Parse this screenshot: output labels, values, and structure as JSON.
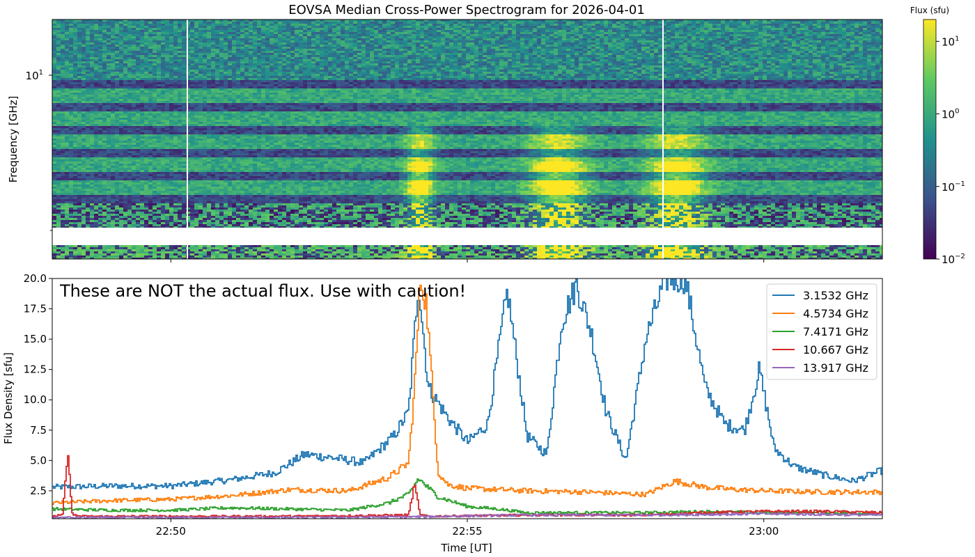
{
  "title": "EOVSA Median Cross-Power Spectrogram for 2026-04-01",
  "colorbar": {
    "label": "Flux (sfu)",
    "ticks": [
      {
        "base": "10",
        "exp": "1",
        "value": 10
      },
      {
        "base": "10",
        "exp": "0",
        "value": 1
      },
      {
        "base": "10",
        "exp": "−1",
        "value": 0.1
      },
      {
        "base": "10",
        "exp": "−2",
        "value": 0.01
      }
    ],
    "range": [
      0.01,
      20
    ],
    "colormap": [
      "#440154",
      "#3b528b",
      "#21918c",
      "#5ec962",
      "#fde725"
    ]
  },
  "spectrogram": {
    "ylabel": "Frequency [GHz]",
    "ytick": {
      "base": "10",
      "exp": "1",
      "value": 10
    },
    "yscale": "log",
    "xlim": [
      "22:48",
      "23:02"
    ]
  },
  "lightcurve": {
    "xlabel": "Time [UT]",
    "ylabel": "Flux Density [sfu]",
    "annotation": "These are NOT the actual flux. Use with caution!",
    "yticks": [
      "2.5",
      "5.0",
      "7.5",
      "10.0",
      "12.5",
      "15.0",
      "17.5",
      "20.0"
    ],
    "xticks": [
      "22:50",
      "22:55",
      "23:00"
    ],
    "legend_position": "top-right"
  },
  "chart_data": [
    {
      "type": "heatmap",
      "title": "EOVSA Median Cross-Power Spectrogram for 2026-04-01",
      "xlabel": "",
      "ylabel": "Frequency [GHz]",
      "yscale": "log",
      "zscale": "log",
      "zlabel": "Flux (sfu)",
      "zlim": [
        0.01,
        20
      ],
      "bright_events": [
        {
          "time": "22:54:10",
          "note": "bright emission 3-6 GHz"
        },
        {
          "time": "22:56:30",
          "note": "bright emission below 4 GHz"
        },
        {
          "time": "22:58:30",
          "note": "bright emission below 4 GHz"
        }
      ]
    },
    {
      "type": "line",
      "xlabel": "Time [UT]",
      "ylabel": "Flux Density [sfu]",
      "xlim": [
        "22:48:00",
        "23:02:00"
      ],
      "ylim": [
        0.2,
        20
      ],
      "grid": false,
      "legend": "top-right",
      "series": [
        {
          "name": "3.1532 GHz",
          "color": "#1f77b4",
          "x": [
            "22:48:00",
            "22:49:00",
            "22:50:00",
            "22:51:00",
            "22:51:45",
            "22:52:15",
            "22:52:45",
            "22:53:15",
            "22:53:45",
            "22:54:00",
            "22:54:10",
            "22:54:20",
            "22:54:40",
            "22:55:00",
            "22:55:20",
            "22:55:40",
            "22:56:00",
            "22:56:20",
            "22:56:35",
            "22:56:50",
            "22:57:05",
            "22:57:20",
            "22:57:40",
            "22:58:00",
            "22:58:20",
            "22:58:40",
            "22:59:00",
            "22:59:20",
            "22:59:40",
            "22:59:55",
            "23:00:10",
            "23:00:30",
            "23:01:00",
            "23:01:30",
            "23:02:00"
          ],
          "y": [
            2.8,
            2.9,
            2.9,
            3.4,
            4.0,
            5.5,
            5.2,
            4.8,
            7.0,
            9.0,
            19.8,
            11.0,
            8.5,
            6.5,
            8.0,
            19.0,
            7.0,
            5.5,
            16.5,
            19.5,
            15.5,
            9.0,
            5.0,
            15.0,
            20.0,
            20.0,
            11.0,
            8.0,
            7.5,
            12.5,
            6.0,
            4.5,
            3.8,
            3.3,
            4.2
          ]
        },
        {
          "name": "4.5734 GHz",
          "color": "#ff7f0e",
          "x": [
            "22:48:00",
            "22:49:00",
            "22:50:00",
            "22:51:00",
            "22:52:00",
            "22:53:00",
            "22:53:40",
            "22:54:00",
            "22:54:06",
            "22:54:12",
            "22:54:18",
            "22:54:30",
            "22:54:40",
            "22:55:00",
            "22:56:00",
            "22:57:00",
            "22:58:00",
            "22:58:30",
            "22:59:00",
            "22:59:30",
            "23:00:00",
            "23:01:00",
            "23:02:00"
          ],
          "y": [
            1.5,
            1.7,
            1.8,
            2.1,
            2.6,
            2.5,
            3.6,
            4.8,
            11.0,
            20.0,
            18.0,
            4.0,
            3.0,
            2.7,
            2.5,
            2.4,
            2.2,
            3.3,
            2.8,
            2.6,
            2.5,
            2.4,
            2.4
          ]
        },
        {
          "name": "7.4171 GHz",
          "color": "#2ca02c",
          "x": [
            "22:48:00",
            "22:49:00",
            "22:50:00",
            "22:51:00",
            "22:52:00",
            "22:53:00",
            "22:53:40",
            "22:54:00",
            "22:54:10",
            "22:54:30",
            "22:55:00",
            "22:55:30",
            "22:56:00",
            "22:57:00",
            "22:58:00",
            "22:59:00",
            "23:00:00",
            "23:01:00",
            "23:02:00"
          ],
          "y": [
            1.0,
            0.9,
            0.9,
            1.1,
            1.0,
            0.9,
            1.5,
            2.2,
            3.5,
            2.0,
            1.2,
            1.0,
            0.7,
            0.7,
            0.7,
            0.8,
            0.7,
            0.7,
            0.6
          ]
        },
        {
          "name": "10.667 GHz",
          "color": "#d62728",
          "x": [
            "22:48:00",
            "22:48:10",
            "22:48:15",
            "22:48:20",
            "22:48:30",
            "22:50:00",
            "22:52:00",
            "22:54:00",
            "22:54:06",
            "22:54:12",
            "22:54:20",
            "22:56:00",
            "22:58:00",
            "22:59:00",
            "23:00:00",
            "23:01:00",
            "23:02:00"
          ],
          "y": [
            0.4,
            0.5,
            5.6,
            0.5,
            0.4,
            0.4,
            0.4,
            0.5,
            3.0,
            0.5,
            0.4,
            0.5,
            0.5,
            0.7,
            0.8,
            0.8,
            0.7
          ]
        },
        {
          "name": "13.917 GHz",
          "color": "#9467bd",
          "x": [
            "22:48:00",
            "22:50:00",
            "22:52:00",
            "22:54:00",
            "22:56:00",
            "22:58:00",
            "23:00:00",
            "23:02:00"
          ],
          "y": [
            0.3,
            0.3,
            0.3,
            0.35,
            0.5,
            0.5,
            0.6,
            0.5
          ]
        }
      ]
    }
  ]
}
